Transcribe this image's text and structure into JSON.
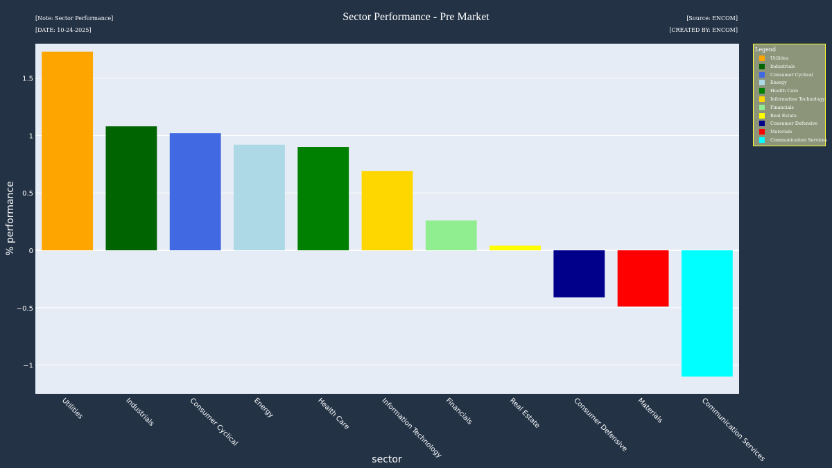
{
  "header": {
    "note": "[Note: Sector Performance]",
    "date": "[DATE: 10-24-2025]",
    "source": "[Source: ENCOM]",
    "created": "[CREATED BY: ENCOM]"
  },
  "colors": {
    "background": "#233245",
    "plot_bg": "#e5ecf6",
    "legend_bg": "#8c9479",
    "legend_border": "#ffff33"
  },
  "chart_data": {
    "type": "bar",
    "title": "Sector Performance - Pre Market",
    "xlabel": "sector",
    "ylabel": "% performance",
    "ylim": [
      -1.25,
      1.8
    ],
    "yticks": [
      -1,
      -0.5,
      0,
      0.5,
      1,
      1.5
    ],
    "ytick_labels": [
      "−1",
      "−0.5",
      "0",
      "0.5",
      "1",
      "1.5"
    ],
    "grid": true,
    "legend_title": "Legend",
    "legend_position": "right",
    "categories": [
      "Utilities",
      "Industrials",
      "Consumer Cyclical",
      "Energy",
      "Health Care",
      "Information Technology",
      "Financials",
      "Real Estate",
      "Consumer Defensive",
      "Materials",
      "Communication Services"
    ],
    "values": [
      1.73,
      1.08,
      1.02,
      0.92,
      0.9,
      0.69,
      0.26,
      0.04,
      -0.41,
      -0.49,
      -1.1
    ],
    "bar_colors": [
      "#ffa500",
      "#006400",
      "#4169e1",
      "#add8e6",
      "#008000",
      "#ffd700",
      "#90ee90",
      "#ffff00",
      "#00008b",
      "#ff0000",
      "#00ffff"
    ]
  }
}
